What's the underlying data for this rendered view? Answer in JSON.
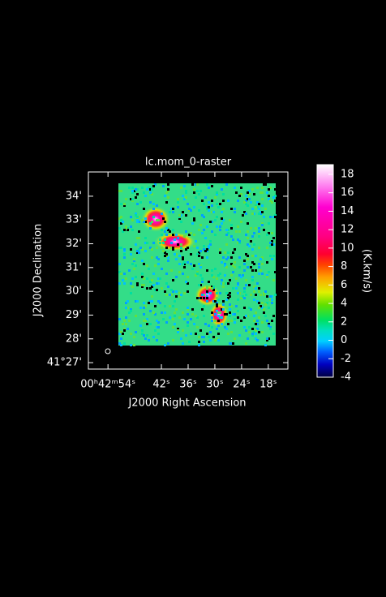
{
  "chart_data": {
    "type": "image",
    "title": "lc.mom_0-raster",
    "xlabel": "J2000 Right Ascension",
    "ylabel": "J2000 Declination",
    "xlim": [
      58.4,
      13.6
    ],
    "xticks": [
      {
        "value": 54,
        "label": "00ʰ42ᵐ54ˢ"
      },
      {
        "value": 42,
        "label": "42ˢ"
      },
      {
        "value": 36,
        "label": "36ˢ"
      },
      {
        "value": 30,
        "label": "30ˢ"
      },
      {
        "value": 24,
        "label": "24ˢ"
      },
      {
        "value": 18,
        "label": "18ˢ"
      }
    ],
    "ylim": [
      26.73,
      35.02
    ],
    "yticks": [
      {
        "value": 27,
        "label": "41°27'"
      },
      {
        "value": 28,
        "label": "28'"
      },
      {
        "value": 29,
        "label": "29'"
      },
      {
        "value": 30,
        "label": "30'"
      },
      {
        "value": 31,
        "label": "31'"
      },
      {
        "value": 32,
        "label": "32'"
      },
      {
        "value": 33,
        "label": "33'"
      },
      {
        "value": 34,
        "label": "34'"
      }
    ],
    "colorbar": {
      "label": "(K.km/s)",
      "lim": [
        -4,
        19.05
      ],
      "ticks": [
        -4,
        -2,
        0,
        2,
        4,
        6,
        8,
        10,
        12,
        14,
        16,
        18
      ]
    }
  }
}
